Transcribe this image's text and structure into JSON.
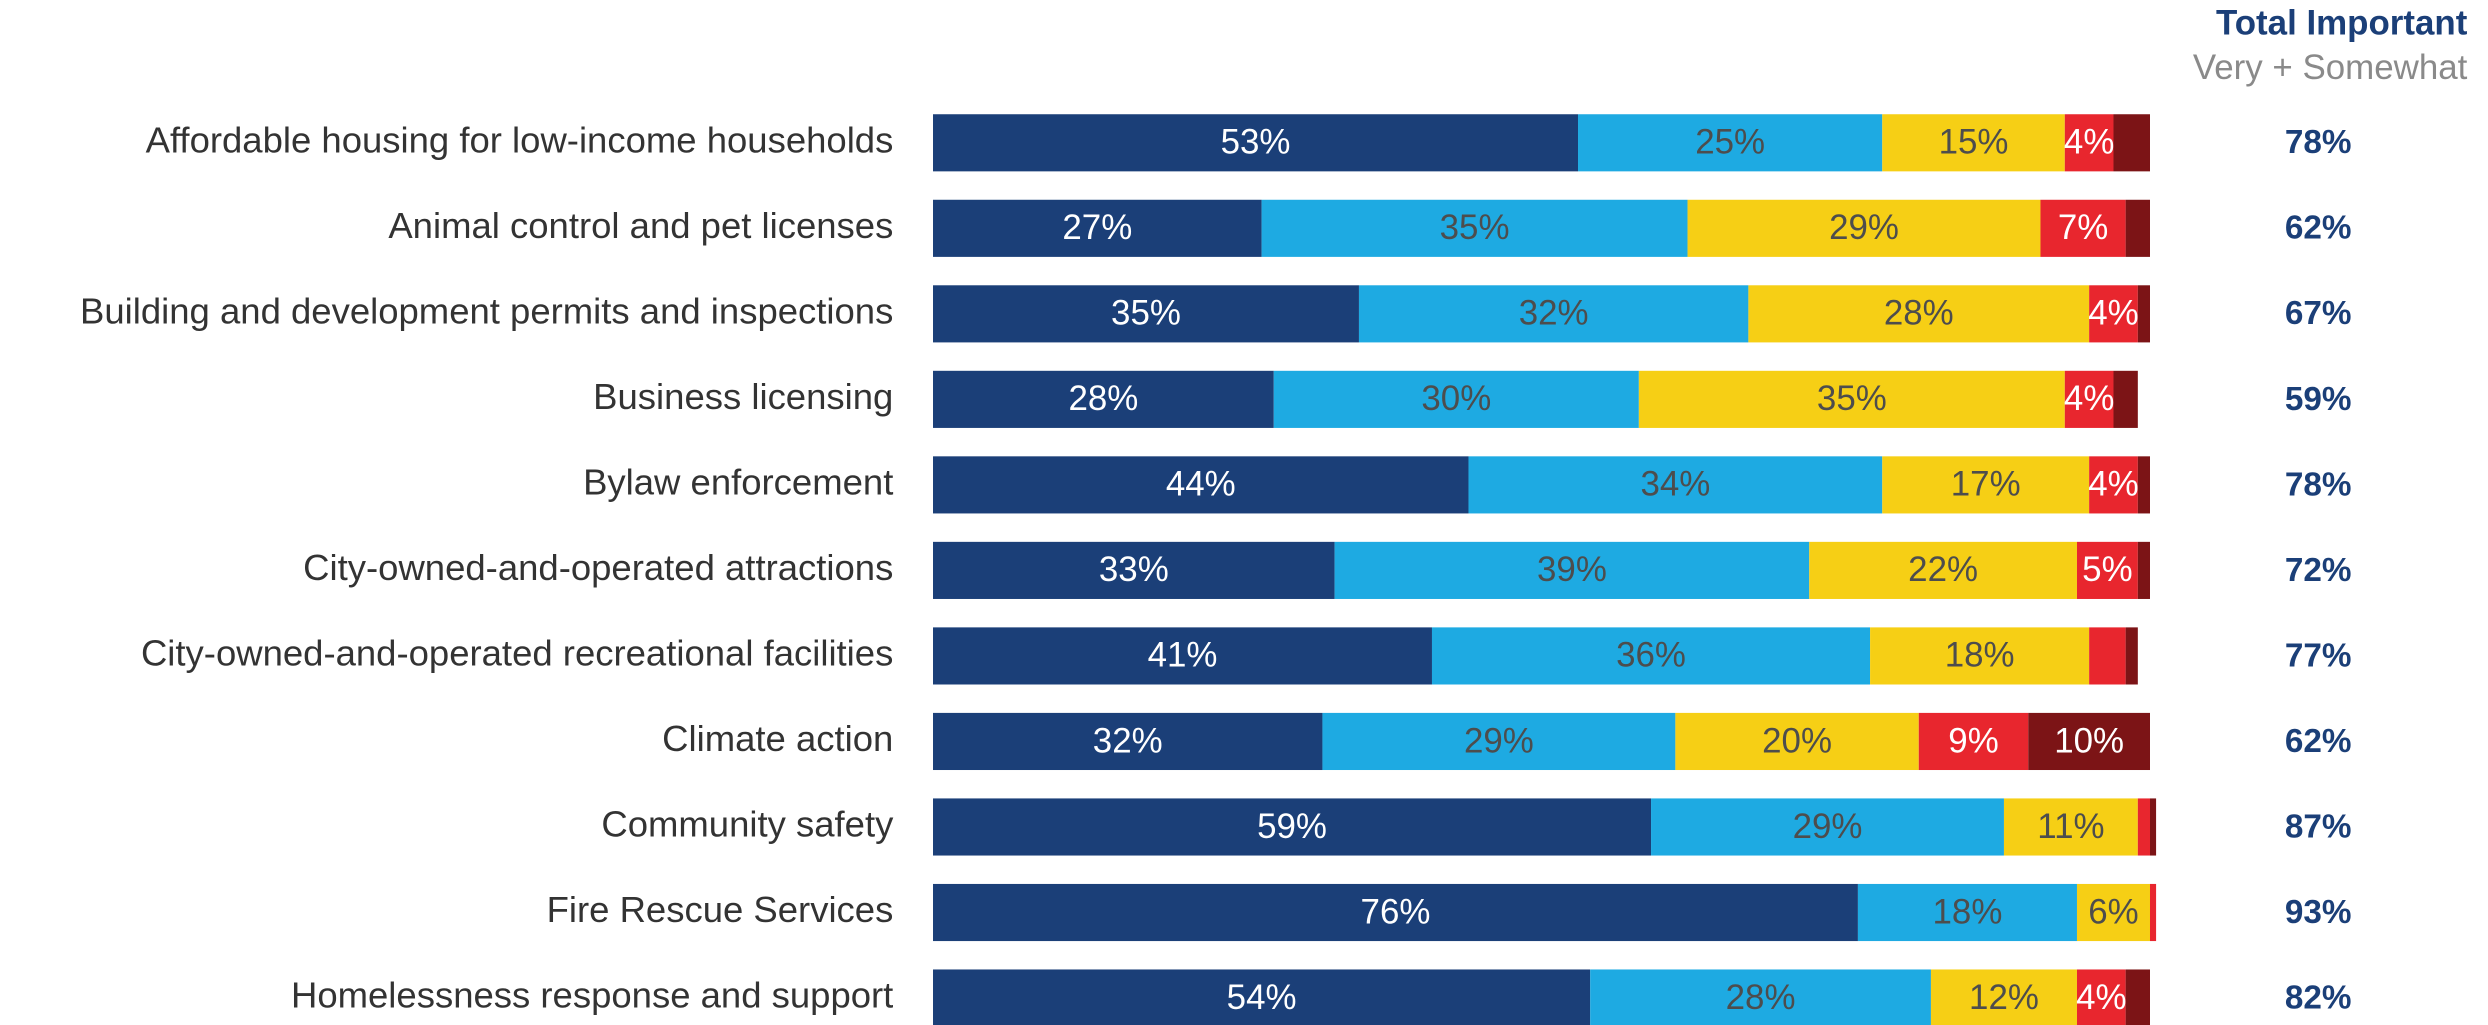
{
  "chart_data": {
    "type": "stacked_barh",
    "categories": [
      "Affordable housing for low-income households",
      "Animal control and pet licenses",
      "Building and development permits and inspections",
      "Business licensing",
      "Bylaw enforcement",
      "City-owned-and-operated attractions",
      "City-owned-and-operated recreational facilities",
      "Climate action",
      "Community safety",
      "Fire Rescue Services",
      "Homelessness response and support"
    ],
    "xlim": [
      0,
      100
    ],
    "series": [
      {
        "color": "#1b3f78",
        "label_color": "#ffffff",
        "values": [
          53,
          27,
          35,
          28,
          44,
          33,
          41,
          32,
          59,
          76,
          54
        ],
        "value_labels": [
          "53%",
          "27%",
          "35%",
          "28%",
          "44%",
          "33%",
          "41%",
          "32%",
          "59%",
          "76%",
          "54%"
        ]
      },
      {
        "color": "#1eaae2",
        "label_color": "#4d4d4d",
        "values": [
          25,
          35,
          32,
          30,
          34,
          39,
          36,
          29,
          29,
          18,
          28
        ],
        "value_labels": [
          "25%",
          "35%",
          "32%",
          "30%",
          "34%",
          "39%",
          "36%",
          "29%",
          "29%",
          "18%",
          "28%"
        ]
      },
      {
        "color": "#f6cf15",
        "label_color": "#4d4d4d",
        "values": [
          15,
          29,
          28,
          35,
          17,
          22,
          18,
          20,
          11,
          6,
          12
        ],
        "value_labels": [
          "15%",
          "29%",
          "28%",
          "35%",
          "17%",
          "22%",
          "18%",
          "20%",
          "11%",
          "6%",
          "12%"
        ]
      },
      {
        "color": "#e8262e",
        "label_color": "#ffffff",
        "values": [
          4,
          7,
          4,
          4,
          4,
          5,
          3,
          9,
          1,
          0.5,
          4
        ],
        "value_labels": [
          "4%",
          "7%",
          "4%",
          "4%",
          "4%",
          "5%",
          null,
          "9%",
          null,
          null,
          "4%"
        ]
      },
      {
        "color": "#7c1416",
        "label_color": "#ffffff",
        "values": [
          3,
          2,
          1,
          2,
          1,
          1,
          1,
          10,
          0.5,
          0,
          2
        ],
        "value_labels": [
          null,
          null,
          null,
          null,
          null,
          null,
          null,
          "10%",
          null,
          null,
          null
        ]
      }
    ],
    "totals": {
      "title": "Total Important",
      "subtitle": "Very + Somewhat",
      "color": "#1b3f78",
      "values": [
        78,
        62,
        67,
        59,
        78,
        72,
        77,
        62,
        87,
        93,
        82
      ],
      "value_labels": [
        "78%",
        "62%",
        "67%",
        "59%",
        "78%",
        "72%",
        "77%",
        "62%",
        "87%",
        "93%",
        "82%"
      ]
    }
  }
}
